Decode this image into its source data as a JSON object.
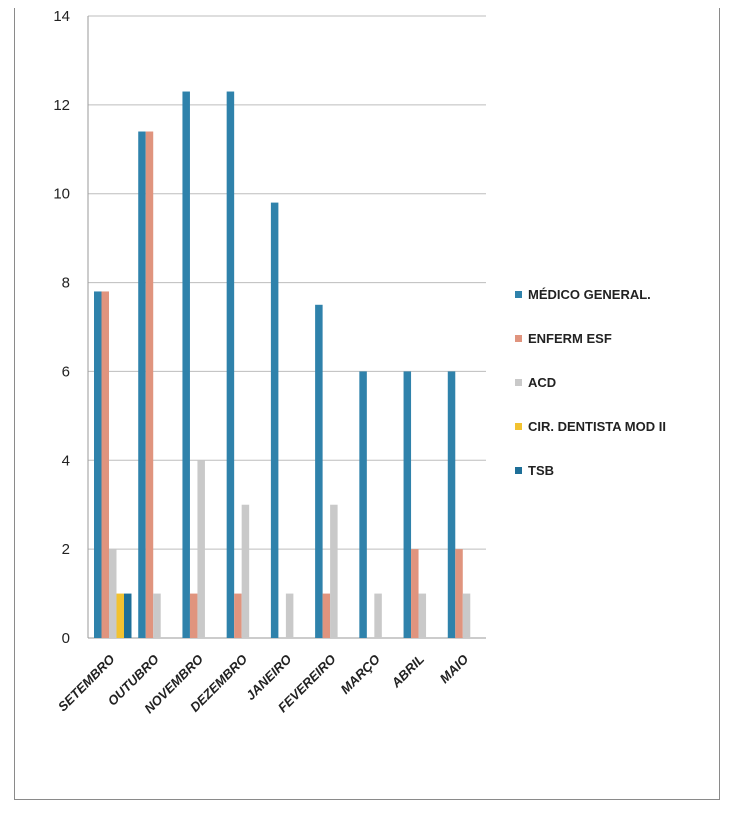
{
  "chart_data": {
    "type": "bar",
    "title": "",
    "xlabel": "",
    "ylabel": "",
    "ylim": [
      0,
      14
    ],
    "yticks": [
      0,
      2,
      4,
      6,
      8,
      10,
      12,
      14
    ],
    "grid": true,
    "legend_position": "right",
    "categories": [
      "SETEMBRO",
      "OUTUBRO",
      "NOVEMBRO",
      "DEZEMBRO",
      "JANEIRO",
      "FEVEREIRO",
      "MARÇO",
      "ABRIL",
      "MAIO"
    ],
    "series": [
      {
        "name": "MÉDICO GENERAL.",
        "color": "#2f82ab",
        "values": [
          7.8,
          11.4,
          12.3,
          12.3,
          9.8,
          7.5,
          6,
          6,
          6
        ]
      },
      {
        "name": "ENFERM ESF",
        "color": "#e0947e",
        "values": [
          7.8,
          11.4,
          1,
          1,
          0,
          1,
          0,
          2,
          2
        ]
      },
      {
        "name": "ACD",
        "color": "#c9c9c9",
        "values": [
          2,
          1,
          4,
          3,
          1,
          3,
          1,
          1,
          1
        ]
      },
      {
        "name": "CIR. DENTISTA MOD II",
        "color": "#f2c230",
        "values": [
          1,
          0,
          0,
          0,
          0,
          0,
          0,
          0,
          0
        ]
      },
      {
        "name": "TSB",
        "color": "#1e6f98",
        "values": [
          1,
          0,
          0,
          0,
          0,
          0,
          0,
          0,
          0
        ]
      }
    ]
  }
}
